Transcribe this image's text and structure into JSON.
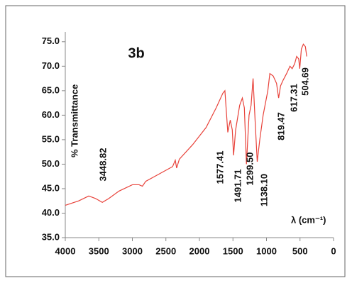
{
  "chart_data": {
    "type": "line",
    "title": "3b",
    "ylabel": "% Transmittance",
    "xlabel": "λ (cm⁻¹)",
    "x": [
      4000,
      3800,
      3650,
      3550,
      3448,
      3350,
      3200,
      3000,
      2900,
      2850,
      2800,
      2600,
      2400,
      2360,
      2340,
      2300,
      2100,
      1900,
      1750,
      1650,
      1620,
      1577,
      1540,
      1510,
      1491,
      1460,
      1400,
      1360,
      1330,
      1299,
      1260,
      1230,
      1200,
      1170,
      1138,
      1100,
      1050,
      980,
      950,
      900,
      850,
      819,
      790,
      750,
      700,
      650,
      617,
      580,
      550,
      520,
      504,
      480,
      450,
      420,
      400
    ],
    "series": [
      {
        "name": "3b",
        "color": "#e8423a",
        "values": [
          41.6,
          42.5,
          43.5,
          43.0,
          42.2,
          43.0,
          44.5,
          45.8,
          45.8,
          45.5,
          46.5,
          48.0,
          49.5,
          50.8,
          49.2,
          51.0,
          54.0,
          57.5,
          61.5,
          64.5,
          65.0,
          56.5,
          59.0,
          57.0,
          51.8,
          57.0,
          62.0,
          63.5,
          61.5,
          50.0,
          60.0,
          62.0,
          67.5,
          59.0,
          50.5,
          55.0,
          60.0,
          65.0,
          68.5,
          68.0,
          66.5,
          63.5,
          66.0,
          67.2,
          68.5,
          70.0,
          69.5,
          70.5,
          72.0,
          71.5,
          69.5,
          73.5,
          74.5,
          74.0,
          72.0
        ]
      }
    ],
    "xlim": [
      4000,
      0
    ],
    "ylim": [
      35,
      77
    ],
    "xticks": [
      4000,
      3500,
      3000,
      2500,
      2000,
      1500,
      1000,
      500,
      0
    ],
    "yticks": [
      {
        "value": 35,
        "label": "35.0"
      },
      {
        "value": 40,
        "label": "40.0"
      },
      {
        "value": 45,
        "label": "45.0"
      },
      {
        "value": 50,
        "label": "50.0"
      },
      {
        "value": 55,
        "label": "55.0"
      },
      {
        "value": 60,
        "label": "60.0"
      },
      {
        "value": 65,
        "label": "65.0"
      },
      {
        "value": 70,
        "label": "70.0"
      },
      {
        "value": 75,
        "label": "75.0"
      }
    ],
    "annotations": [
      "3448.82",
      "1577.41",
      "1491.71",
      "1299.50",
      "1138.10",
      "819.47",
      "617.31",
      "504.69"
    ]
  }
}
